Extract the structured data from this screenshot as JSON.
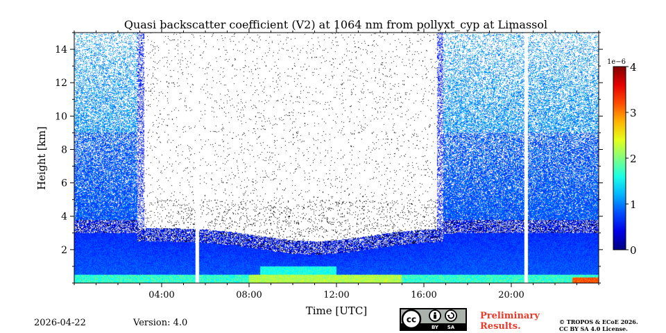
{
  "chart_data": {
    "type": "heatmap",
    "title": "Quasi backscatter coefficient (V2) at 1064 nm from pollyxt_cyp at Limassol",
    "xlabel": "Time [UTC]",
    "ylabel": "Height [km]",
    "xlim_hours": [
      0,
      24
    ],
    "ylim_km": [
      0,
      15
    ],
    "x_ticks": [
      {
        "value": 4,
        "label": "04:00"
      },
      {
        "value": 8,
        "label": "08:00"
      },
      {
        "value": 12,
        "label": "12:00"
      },
      {
        "value": 16,
        "label": "16:00"
      },
      {
        "value": 20,
        "label": "20:00"
      }
    ],
    "y_ticks": [
      {
        "value": 2,
        "label": "2"
      },
      {
        "value": 4,
        "label": "4"
      },
      {
        "value": 6,
        "label": "6"
      },
      {
        "value": 8,
        "label": "8"
      },
      {
        "value": 10,
        "label": "10"
      },
      {
        "value": 12,
        "label": "12"
      },
      {
        "value": 14,
        "label": "14"
      }
    ],
    "colorbar": {
      "min": 0,
      "max": 4,
      "exponent_label": "1e−6",
      "ticks": [
        {
          "value": 0,
          "label": "0"
        },
        {
          "value": 1,
          "label": "1"
        },
        {
          "value": 2,
          "label": "2"
        },
        {
          "value": 3,
          "label": "3"
        },
        {
          "value": 4,
          "label": "4"
        }
      ],
      "colormap": "jet"
    },
    "data_gaps_hours": [
      [
        5.55,
        5.7
      ],
      [
        20.6,
        20.75
      ]
    ],
    "features": {
      "night_signal_until_hours": 2.9,
      "night_signal_from_hours": 16.9,
      "boundary_layer_top_km": 2.5,
      "peak_value_near_surface": 3.5
    }
  },
  "footer": {
    "date": "2026-04-22",
    "version": "Version: 4.0",
    "preliminary_line1": "Preliminary",
    "preliminary_line2": "Results.",
    "copyright_line1": "© TROPOS & ECoE 2026.",
    "copyright_line2": "CC BY SA 4.0 License.",
    "cc_text": "cc",
    "by_text": "BY",
    "sa_text": "SA"
  }
}
